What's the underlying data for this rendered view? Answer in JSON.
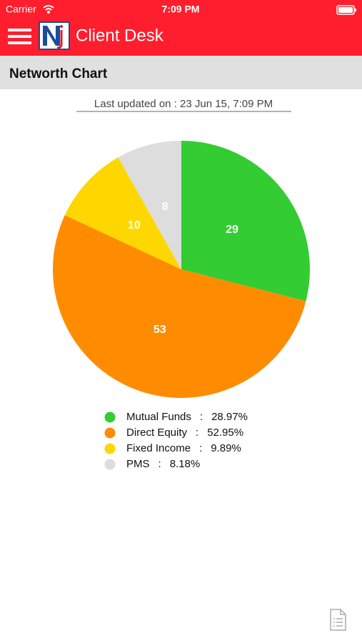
{
  "status_bar": {
    "carrier": "Carrier",
    "time": "7:09 PM"
  },
  "header": {
    "title": "Client Desk"
  },
  "section": {
    "title": "Networth Chart"
  },
  "last_updated": "Last updated on : 23 Jun 15, 7:09 PM",
  "chart_data": {
    "type": "pie",
    "categories": [
      "Mutual Funds",
      "Direct Equity",
      "Fixed Income",
      "PMS"
    ],
    "values": [
      28.97,
      52.95,
      9.89,
      8.18
    ],
    "value_labels": [
      "29",
      "53",
      "10",
      "8"
    ],
    "legend_value_labels": [
      "28.97%",
      "52.95%",
      "9.89%",
      "8.18%"
    ],
    "legend_separator": ":",
    "colors": [
      "#33cc33",
      "#ff8c00",
      "#ffd700",
      "#dddddd"
    ]
  }
}
